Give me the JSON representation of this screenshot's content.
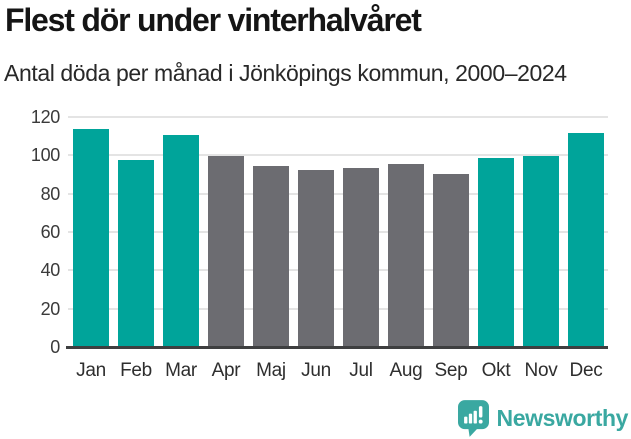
{
  "header": {
    "title": "Flest dör under vinterhalvåret",
    "subtitle": "Antal döda per månad i Jönköpings kommun, 2000–2024"
  },
  "chart_data": {
    "type": "bar",
    "title": "Flest dör under vinterhalvåret",
    "subtitle": "Antal döda per månad i Jönköpings kommun, 2000–2024",
    "categories": [
      "Jan",
      "Feb",
      "Mar",
      "Apr",
      "Maj",
      "Jun",
      "Jul",
      "Aug",
      "Sep",
      "Okt",
      "Nov",
      "Dec"
    ],
    "values": [
      113,
      97,
      110,
      99,
      94,
      92,
      93,
      95,
      90,
      98,
      99,
      111
    ],
    "highlighted_winter_months": [
      true,
      true,
      true,
      false,
      false,
      false,
      false,
      false,
      false,
      true,
      true,
      true
    ],
    "xlabel": "",
    "ylabel": "",
    "ylim": [
      0,
      120
    ],
    "yticks": [
      0,
      20,
      40,
      60,
      80,
      100,
      120
    ],
    "grid": true,
    "legend": false,
    "colors": {
      "highlight": "#00a49a",
      "muted": "#6c6c71",
      "gridline": "#e4e4e4",
      "axis_line": "#3e3f40",
      "tick_label": "#3a3a3a"
    }
  },
  "footer": {
    "brand": "Newsworthy",
    "brand_color": "#3aa8a1",
    "logo_icon": "bar-chart-speech-bubble-icon"
  }
}
